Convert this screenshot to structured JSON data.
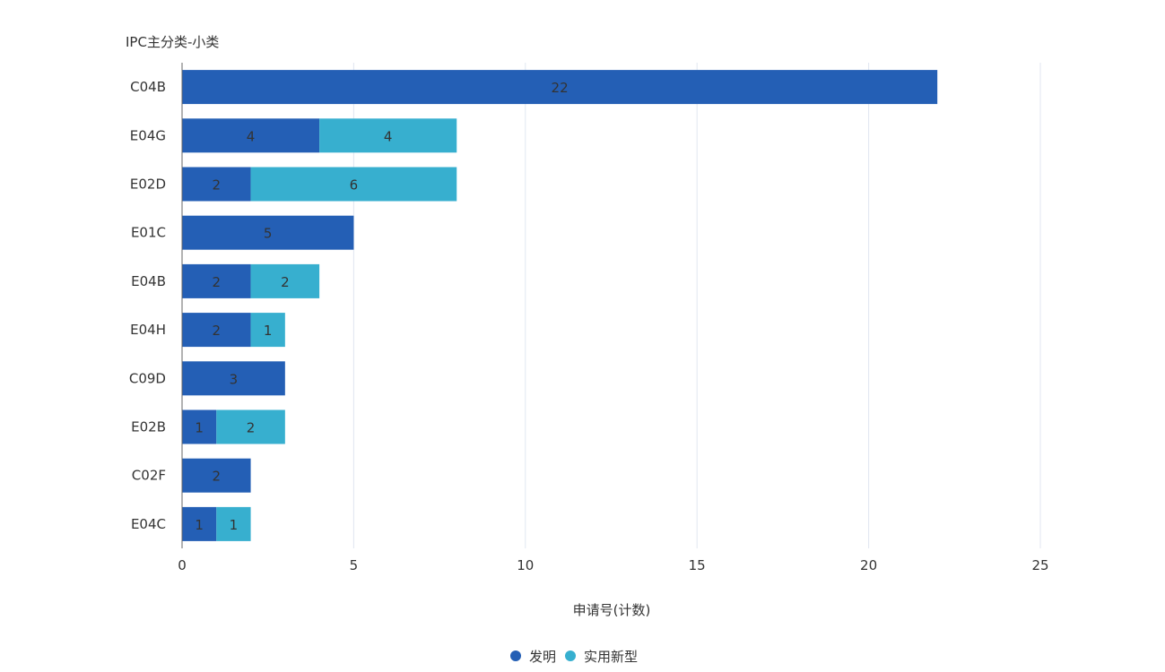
{
  "chart_data": {
    "type": "bar",
    "orientation": "horizontal",
    "stacked": true,
    "ylabel": "IPC主分类-小类",
    "xlabel": "申请号(计数)",
    "categories": [
      "C04B",
      "E04G",
      "E02D",
      "E01C",
      "E04B",
      "E04H",
      "C09D",
      "E02B",
      "C02F",
      "E04C"
    ],
    "series": [
      {
        "name": "发明",
        "color": "#245FB5",
        "values": [
          22,
          4,
          2,
          5,
          2,
          2,
          3,
          1,
          2,
          1
        ]
      },
      {
        "name": "实用新型",
        "color": "#37AFCF",
        "values": [
          0,
          4,
          6,
          0,
          2,
          1,
          0,
          2,
          0,
          1
        ]
      }
    ],
    "xlim": [
      0,
      25
    ],
    "xticks": [
      0,
      5,
      10,
      15,
      20,
      25
    ],
    "grid": true,
    "legend": "bottom-center"
  }
}
